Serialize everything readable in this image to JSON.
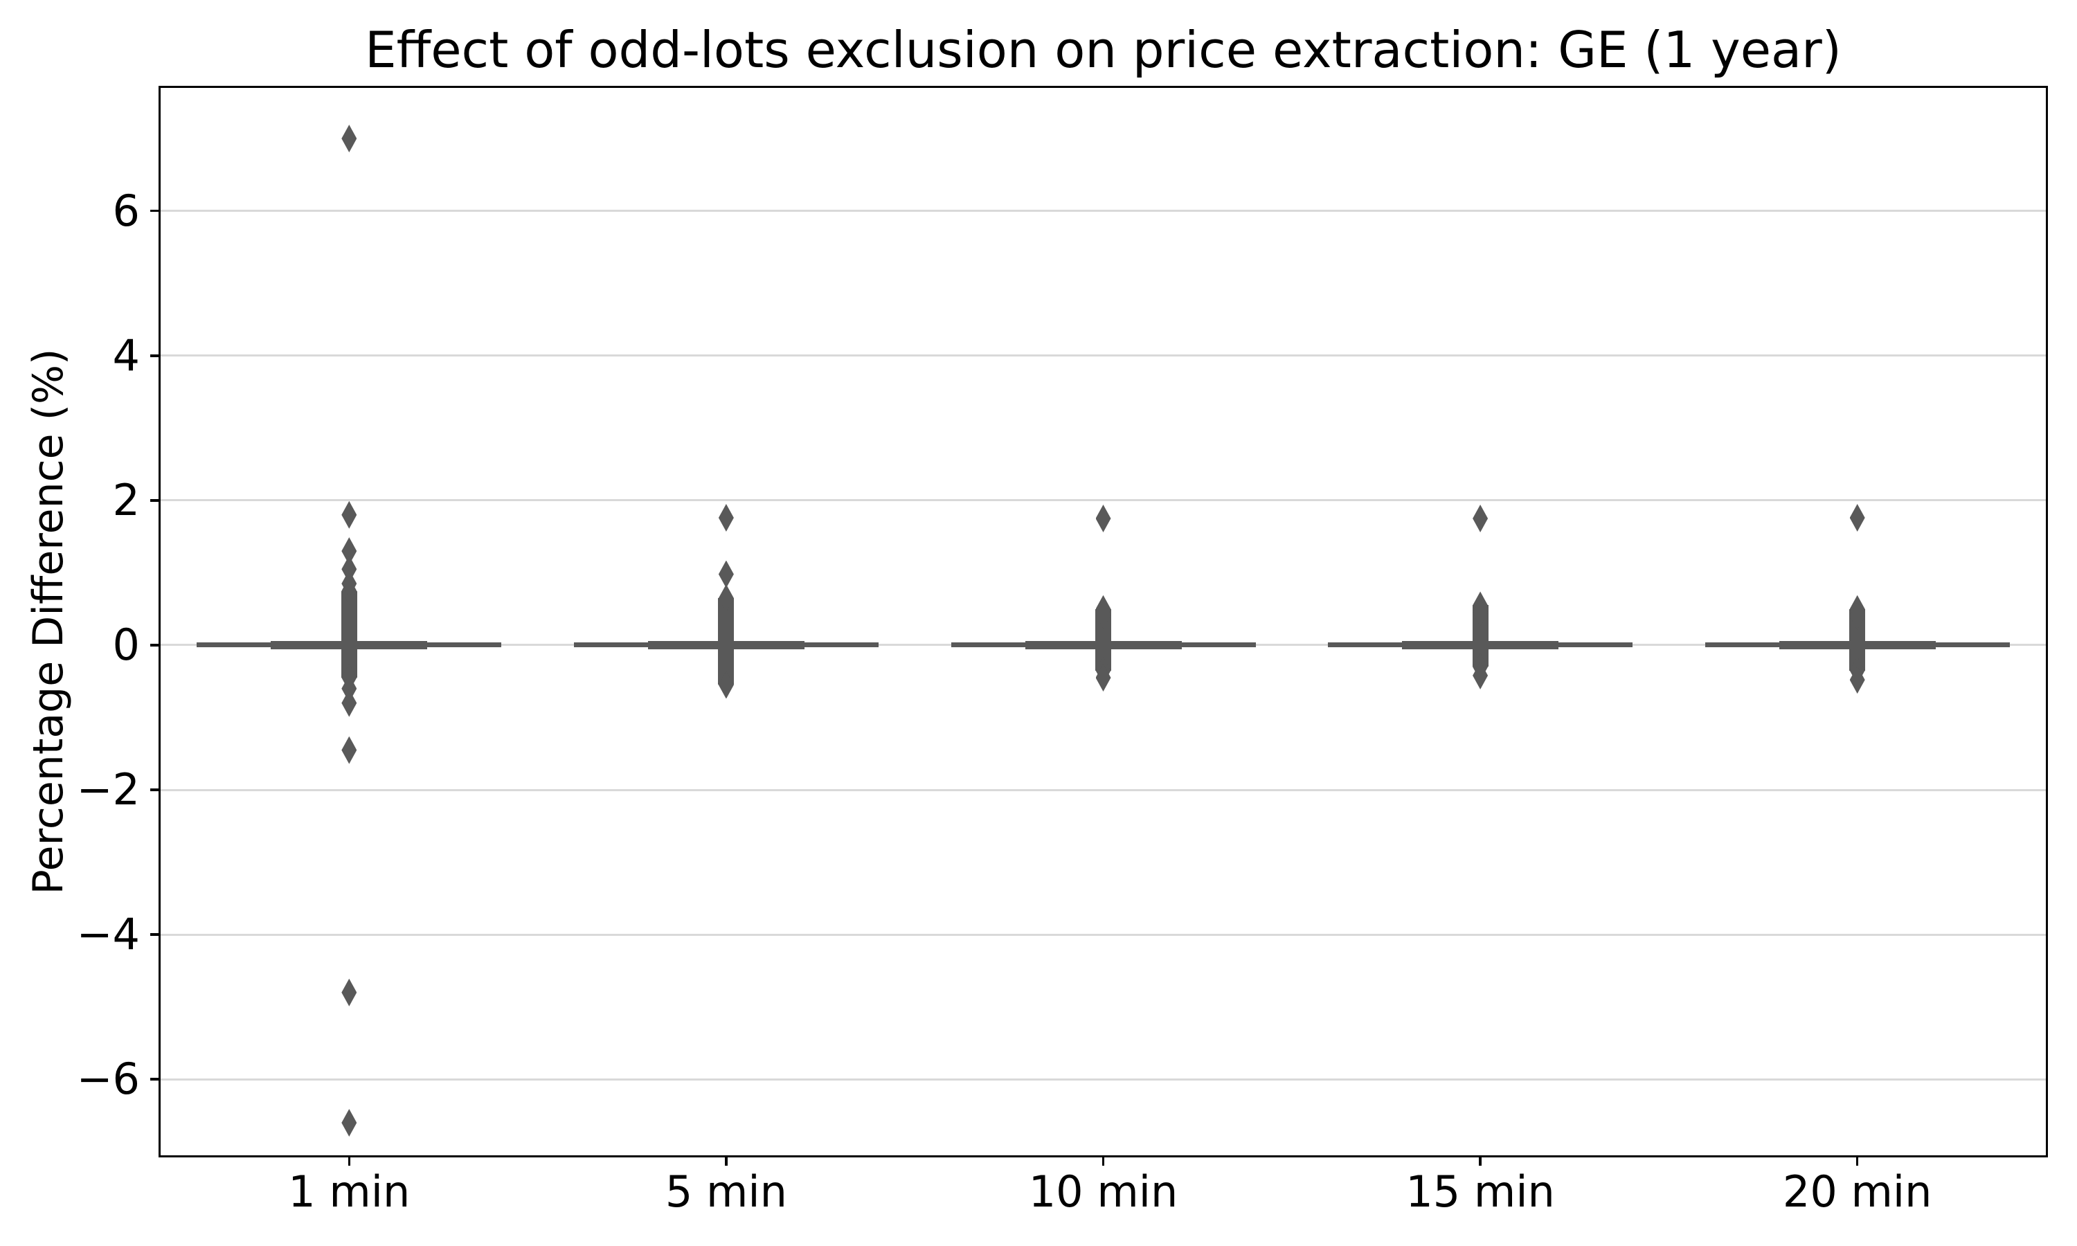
{
  "chart_data": {
    "type": "boxplot",
    "title": "Effect of odd-lots exclusion on price extraction: GE (1 year)",
    "ylabel": "Percentage Difference (%)",
    "xlabel": "",
    "categories": [
      "1 min",
      "5 min",
      "10 min",
      "15 min",
      "20 min"
    ],
    "ylim": [
      -7.05,
      7.7
    ],
    "yticks": [
      {
        "value": 6,
        "label": "6"
      },
      {
        "value": 4,
        "label": "4"
      },
      {
        "value": 2,
        "label": "2"
      },
      {
        "value": 0,
        "label": "0"
      },
      {
        "value": -2,
        "label": "−2"
      },
      {
        "value": -4,
        "label": "−4"
      },
      {
        "value": -6,
        "label": "−6"
      }
    ],
    "grid": "horizontal",
    "legend": "none",
    "colors": {
      "data": "#595959",
      "gridline": "#d9d9d9",
      "spine": "#000000",
      "background": "#ffffff"
    },
    "series": [
      {
        "category": "1 min",
        "box_center": 0.0,
        "dense_cluster_top": 0.75,
        "dense_cluster_bottom": -0.45,
        "outliers": [
          7.0,
          1.8,
          1.3,
          1.05,
          0.85,
          -0.6,
          -0.8,
          -1.45,
          -4.8,
          -6.6
        ]
      },
      {
        "category": "5 min",
        "box_center": 0.0,
        "dense_cluster_top": 0.65,
        "dense_cluster_bottom": -0.55,
        "outliers": [
          1.76,
          0.98
        ]
      },
      {
        "category": "10 min",
        "box_center": 0.0,
        "dense_cluster_top": 0.5,
        "dense_cluster_bottom": -0.35,
        "outliers": [
          1.75,
          0.42,
          -0.45
        ]
      },
      {
        "category": "15 min",
        "box_center": 0.0,
        "dense_cluster_top": 0.55,
        "dense_cluster_bottom": -0.3,
        "outliers": [
          1.75,
          0.45,
          -0.42
        ]
      },
      {
        "category": "20 min",
        "box_center": 0.0,
        "dense_cluster_top": 0.5,
        "dense_cluster_bottom": -0.35,
        "outliers": [
          1.76,
          0.4,
          -0.48
        ]
      }
    ]
  }
}
